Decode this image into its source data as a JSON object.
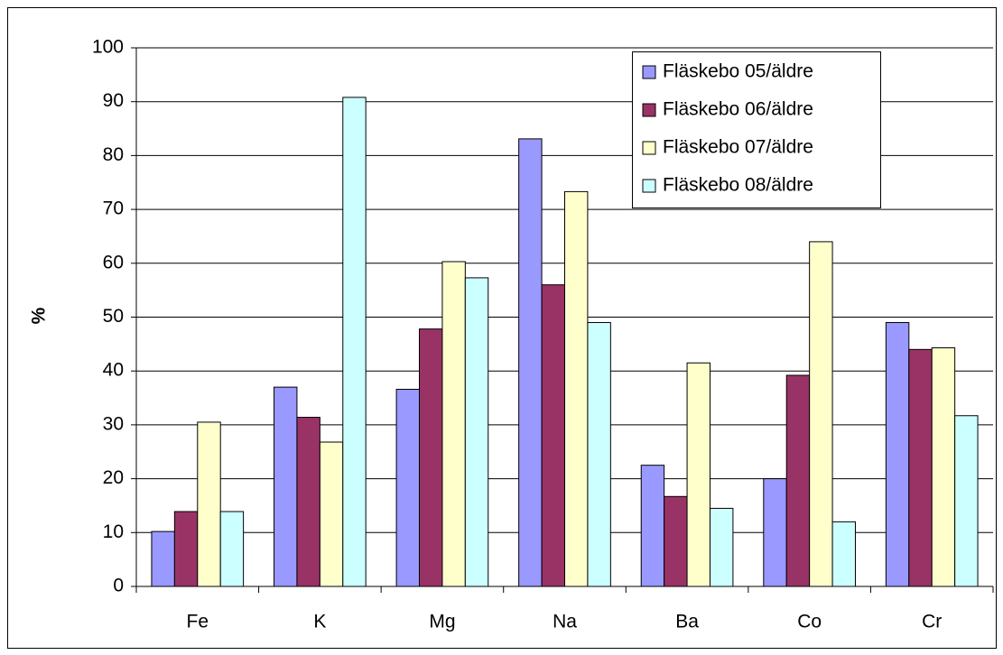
{
  "chart_data": {
    "type": "bar",
    "y_label": "%",
    "categories": [
      "Fe",
      "K",
      "Mg",
      "Na",
      "Ba",
      "Co",
      "Cr"
    ],
    "series": [
      {
        "name": "Fläskebo 05/äldre",
        "color": "#9999ff",
        "values": [
          10.2,
          37,
          36.6,
          83.1,
          22.5,
          20,
          49
        ]
      },
      {
        "name": "Fläskebo 06/äldre",
        "color": "#993366",
        "values": [
          13.9,
          31.4,
          47.8,
          56,
          16.7,
          39.2,
          44
        ]
      },
      {
        "name": "Fläskebo 07/äldre",
        "color": "#ffffcc",
        "values": [
          30.5,
          26.8,
          60.3,
          73.3,
          41.5,
          64,
          44.3
        ]
      },
      {
        "name": "Fläskebo 08/äldre",
        "color": "#ccffff",
        "values": [
          13.9,
          90.8,
          57.3,
          49,
          14.5,
          12,
          31.7
        ]
      }
    ],
    "ylim": [
      0,
      100
    ],
    "yticks": [
      0,
      10,
      20,
      30,
      40,
      50,
      60,
      70,
      80,
      90,
      100
    ],
    "grid": true
  }
}
